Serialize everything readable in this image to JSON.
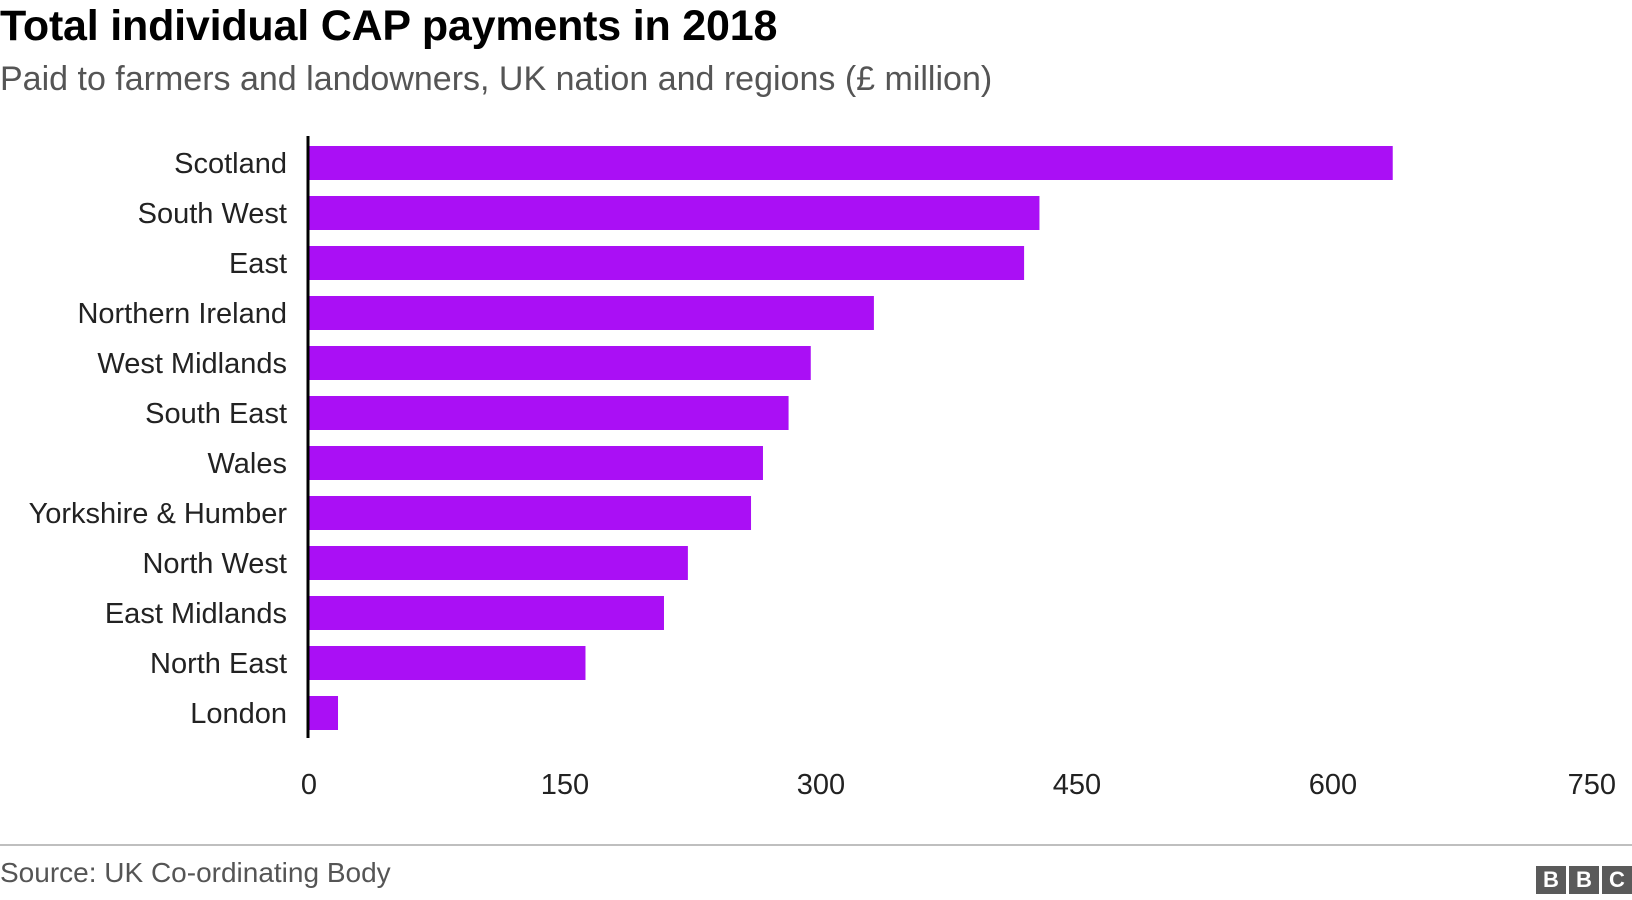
{
  "header": {
    "title": "Total individual CAP payments in 2018",
    "subtitle": "Paid to farmers and landowners, UK nation and regions (£ million)"
  },
  "footer": {
    "source": "Source: UK Co-ordinating Body",
    "logo_letters": [
      "B",
      "B",
      "C"
    ]
  },
  "chart_data": {
    "type": "bar",
    "orientation": "horizontal",
    "title": "Total individual CAP payments in 2018",
    "subtitle": "Paid to farmers and landowners, UK nation and regions (£ million)",
    "categories": [
      "Scotland",
      "South West",
      "East",
      "Northern Ireland",
      "West Midlands",
      "South East",
      "Wales",
      "Yorkshire & Humber",
      "North West",
      "East Midlands",
      "North East",
      "London"
    ],
    "values": [
      635,
      428,
      419,
      331,
      294,
      281,
      266,
      259,
      222,
      208,
      162,
      17
    ],
    "xlim": [
      0,
      750
    ],
    "xticks": [
      0,
      150,
      300,
      450,
      600,
      750
    ],
    "bar_color": "#aa0ff5",
    "grid": false
  }
}
